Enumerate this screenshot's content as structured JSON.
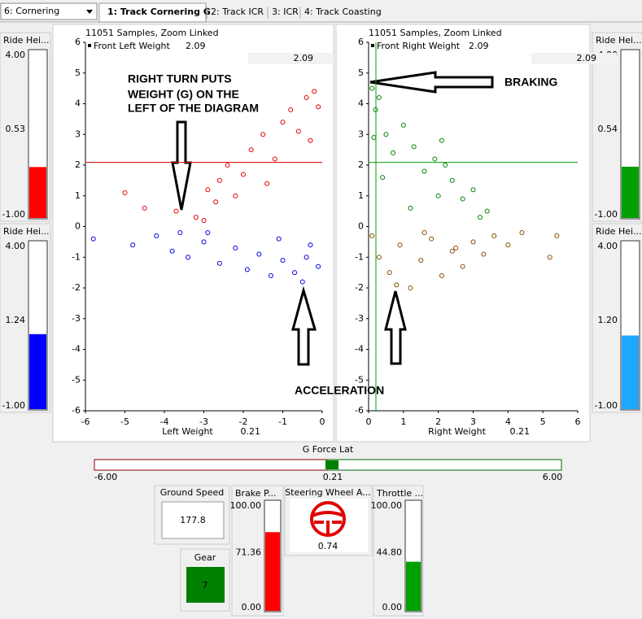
{
  "toolbar": {
    "dropdown": "6: Cornering",
    "tabs": [
      "1: Track Cornering G",
      "2: Track ICR",
      "3: ICR",
      "4: Track Coasting"
    ],
    "selected_tab": 0
  },
  "side_gauges": [
    {
      "title": "Ride Hei...",
      "max": "4.00",
      "value": "0.53",
      "min": "-1.00",
      "color": "#ff0000"
    },
    {
      "title": "Ride Hei...",
      "max": "4.00",
      "value": "1.24",
      "min": "-1.00",
      "color": "#0000ff"
    },
    {
      "title": "Ride Hei...",
      "max": "4.00",
      "value": "0.54",
      "min": "-1.00",
      "color": "#00a000"
    },
    {
      "title": "Ride Hei...",
      "max": "4.00",
      "value": "1.20",
      "min": "-1.00",
      "color": "#1ea7ff"
    }
  ],
  "chart_data": [
    {
      "type": "scatter",
      "header": "11051 Samples, Zoom Linked",
      "legend": "Front Left Weight",
      "legend_value": "2.09",
      "box_value": "2.09",
      "x_label": "Left Weight",
      "x_readout": "0.21",
      "hline": 2.09,
      "line_color": "#e00000",
      "xlim": [
        -6,
        0
      ],
      "ylim": [
        -6,
        6
      ],
      "xticks": [
        -6,
        -5,
        -4,
        -3,
        -2,
        -1,
        0
      ],
      "yticks": [
        -6,
        -5,
        -4,
        -3,
        -2,
        -1,
        0,
        1,
        2,
        3,
        4,
        5,
        6
      ],
      "series": [
        {
          "color": "#e00000",
          "x": [
            -3.7,
            -3.2,
            -2.9,
            -2.6,
            -2.4,
            -2.2,
            -2.0,
            -1.8,
            -1.5,
            -1.2,
            -1.0,
            -0.8,
            -0.6,
            -0.4,
            -0.2,
            -0.1,
            -4.5,
            -5.0,
            -3.0,
            -1.4,
            -0.3,
            -2.7
          ],
          "y": [
            0.5,
            0.3,
            1.2,
            1.5,
            2.0,
            1.0,
            1.7,
            2.5,
            3.0,
            2.2,
            3.4,
            3.8,
            3.1,
            4.2,
            4.4,
            3.9,
            0.6,
            1.1,
            0.2,
            1.4,
            2.8,
            0.8
          ]
        },
        {
          "color": "#0000e0",
          "x": [
            -5.8,
            -4.8,
            -4.2,
            -3.8,
            -3.4,
            -3.0,
            -2.6,
            -2.2,
            -1.9,
            -1.6,
            -1.3,
            -1.0,
            -0.7,
            -0.5,
            -0.3,
            -0.1,
            -2.9,
            -1.1,
            -0.4,
            -3.6
          ],
          "y": [
            -0.4,
            -0.6,
            -0.3,
            -0.8,
            -1.0,
            -0.5,
            -1.2,
            -0.7,
            -1.4,
            -0.9,
            -1.6,
            -1.1,
            -1.5,
            -1.8,
            -0.6,
            -1.3,
            -0.2,
            -0.4,
            -1.0,
            -0.2
          ]
        }
      ]
    },
    {
      "type": "scatter",
      "header": "11051 Samples, Zoom Linked",
      "legend": "Front Right Weight",
      "legend_value": "2.09",
      "box_value": "2.09",
      "x_label": "Right Weight",
      "x_readout": "0.21",
      "hline": 2.09,
      "vline": 0.21,
      "line_color": "#00a000",
      "xlim": [
        0,
        6
      ],
      "ylim": [
        -6,
        6
      ],
      "xticks": [
        0,
        1,
        2,
        3,
        4,
        5,
        6
      ],
      "yticks": [
        -6,
        -5,
        -4,
        -3,
        -2,
        -1,
        0,
        1,
        2,
        3,
        4,
        5,
        6
      ],
      "series": [
        {
          "color": "#008000",
          "x": [
            0.1,
            0.2,
            0.3,
            0.5,
            0.7,
            1.0,
            1.3,
            1.6,
            1.9,
            2.1,
            2.4,
            2.7,
            3.0,
            3.4,
            2.0,
            1.2,
            0.4,
            0.15,
            2.2,
            3.2
          ],
          "y": [
            4.5,
            3.8,
            4.2,
            3.0,
            2.4,
            3.3,
            2.6,
            1.8,
            2.2,
            2.8,
            1.5,
            0.9,
            1.2,
            0.5,
            1.0,
            0.6,
            1.6,
            2.9,
            2.0,
            0.3
          ]
        },
        {
          "color": "#8b4a00",
          "x": [
            0.1,
            0.3,
            0.6,
            0.9,
            1.2,
            1.5,
            1.8,
            2.1,
            2.4,
            2.7,
            3.0,
            3.3,
            3.6,
            4.0,
            4.4,
            5.2,
            5.4,
            0.8,
            1.6,
            2.5
          ],
          "y": [
            -0.3,
            -1.0,
            -1.5,
            -0.6,
            -2.0,
            -1.1,
            -0.4,
            -1.6,
            -0.8,
            -1.3,
            -0.5,
            -0.9,
            -0.3,
            -0.6,
            -0.2,
            -1.0,
            -0.3,
            -1.9,
            -0.2,
            -0.7
          ]
        }
      ]
    }
  ],
  "annotations": [
    "RIGHT TURN PUTS",
    "WEIGHT (G) ON THE",
    "LEFT OF THE DIAGRAM",
    "BRAKING",
    "ACCELERATION"
  ],
  "g_force_lat": {
    "title": "G Force Lat",
    "min": "-6.00",
    "value": "0.21",
    "max": "6.00"
  },
  "ground_speed": {
    "title": "Ground Speed",
    "value": "177.8"
  },
  "gear": {
    "title": "Gear",
    "value": "7"
  },
  "brake": {
    "title": "Brake P...",
    "max": "100.00",
    "value": "71.36",
    "min": "0.00",
    "color": "#ff0000"
  },
  "steering": {
    "title": "Steering Wheel A...",
    "value": "0.74"
  },
  "throttle": {
    "title": "Throttle ...",
    "max": "100.00",
    "value": "44.80",
    "min": "0.00",
    "color": "#00a000"
  }
}
